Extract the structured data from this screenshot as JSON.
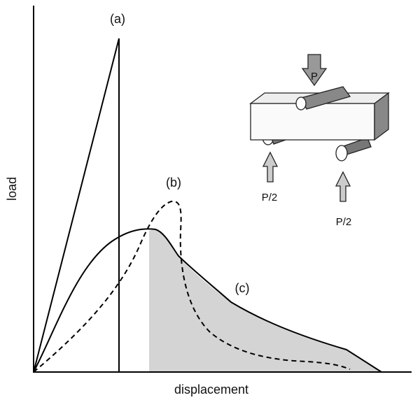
{
  "curves": {
    "a": "(a)",
    "b": "(b)",
    "c": "(c)"
  },
  "axes": {
    "y": "load",
    "x": "displacement"
  },
  "figure": {
    "load": "P",
    "reaction_left": "P/2",
    "reaction_right": "P/2"
  }
}
